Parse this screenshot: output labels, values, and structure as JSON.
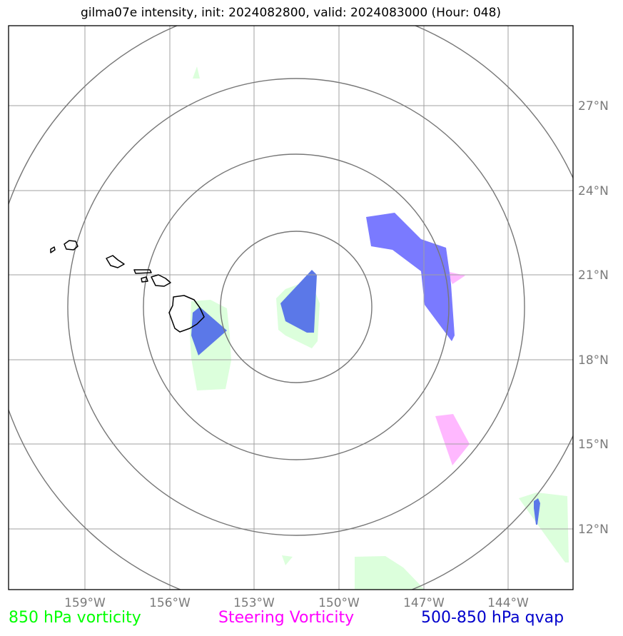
{
  "title": "gilma07e intensity, init: 2024082800, valid: 2024083000 (Hour: 048)",
  "lon_ticks": [
    "159°W",
    "156°W",
    "153°W",
    "150°W",
    "147°W",
    "144°W"
  ],
  "lat_ticks": [
    "27°N",
    "24°N",
    "21°N",
    "18°N",
    "15°N",
    "12°N"
  ],
  "legend": [
    {
      "label": "850 hPa vorticity",
      "color": "#00ff00"
    },
    {
      "label": "Steering Vorticity",
      "color": "#ff00ff"
    },
    {
      "label": "500-850 hPa qvap",
      "color": "#0000cc"
    }
  ],
  "colors": {
    "vort850_fill": "#dcffdc",
    "steer_fill": "#ffb8ff",
    "qvap_fill": "#7a7aff",
    "overlap_fill": "#5b78e8",
    "range_rings": "#777777",
    "gridlines": "#a0a0a0",
    "coastline": "#000000"
  }
}
